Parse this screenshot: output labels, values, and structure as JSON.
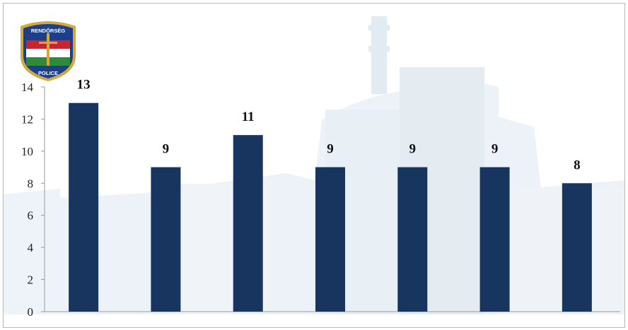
{
  "badge": {
    "top_text": "RENDŐRSÉG",
    "bottom_text": "POLICE"
  },
  "colors": {
    "bar": "#17355f",
    "axis": "#9a9a9a",
    "watermark": "#dfe9f3",
    "badge_red": "#c9252c",
    "badge_green": "#2e8b3e",
    "badge_blue": "#1d3f8a",
    "badge_gold": "#d2a941"
  },
  "chart_data": {
    "type": "bar",
    "categories": [
      "",
      "",
      "",
      "",
      "",
      "",
      ""
    ],
    "values": [
      13,
      9,
      11,
      9,
      9,
      9,
      8
    ],
    "data_labels": [
      "13",
      "9",
      "11",
      "9",
      "9",
      "9",
      "8"
    ],
    "title": "",
    "xlabel": "",
    "ylabel": "",
    "ylim": [
      0,
      14
    ],
    "yticks": [
      0,
      2,
      4,
      6,
      8,
      10,
      12,
      14
    ],
    "grid": false,
    "legend": "none"
  }
}
